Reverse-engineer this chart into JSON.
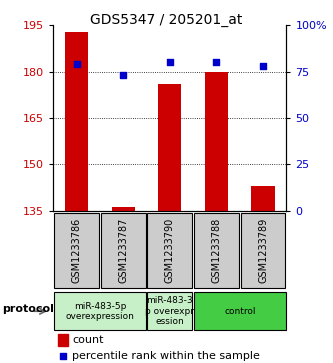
{
  "title": "GDS5347 / 205201_at",
  "samples": [
    "GSM1233786",
    "GSM1233787",
    "GSM1233790",
    "GSM1233788",
    "GSM1233789"
  ],
  "count_values": [
    193,
    136,
    176,
    180,
    143
  ],
  "percentile_values": [
    79,
    73,
    80,
    80,
    78
  ],
  "ylim_left": [
    135,
    195
  ],
  "ylim_right": [
    0,
    100
  ],
  "yticks_left": [
    135,
    150,
    165,
    180,
    195
  ],
  "yticks_right": [
    0,
    25,
    50,
    75,
    100
  ],
  "ytick_labels_right": [
    "0",
    "25",
    "50",
    "75",
    "100%"
  ],
  "bar_color": "#cc0000",
  "dot_color": "#0000cc",
  "bar_bottom": 135,
  "protocol_spans": [
    {
      "start": 0,
      "end": 2,
      "label": "miR-483-5p\noverexpression",
      "color": "#c8f0c8"
    },
    {
      "start": 2,
      "end": 3,
      "label": "miR-483-3\np overexpr\nession",
      "color": "#c8f0c8"
    },
    {
      "start": 3,
      "end": 5,
      "label": "control",
      "color": "#44cc44"
    }
  ],
  "protocol_label": "protocol",
  "legend_count_label": "count",
  "legend_pct_label": "percentile rank within the sample",
  "grid_color": "#000000",
  "bg_color": "#ffffff",
  "sample_box_color": "#cccccc",
  "tick_label_color_left": "#cc0000",
  "tick_label_color_right": "#0000cc"
}
